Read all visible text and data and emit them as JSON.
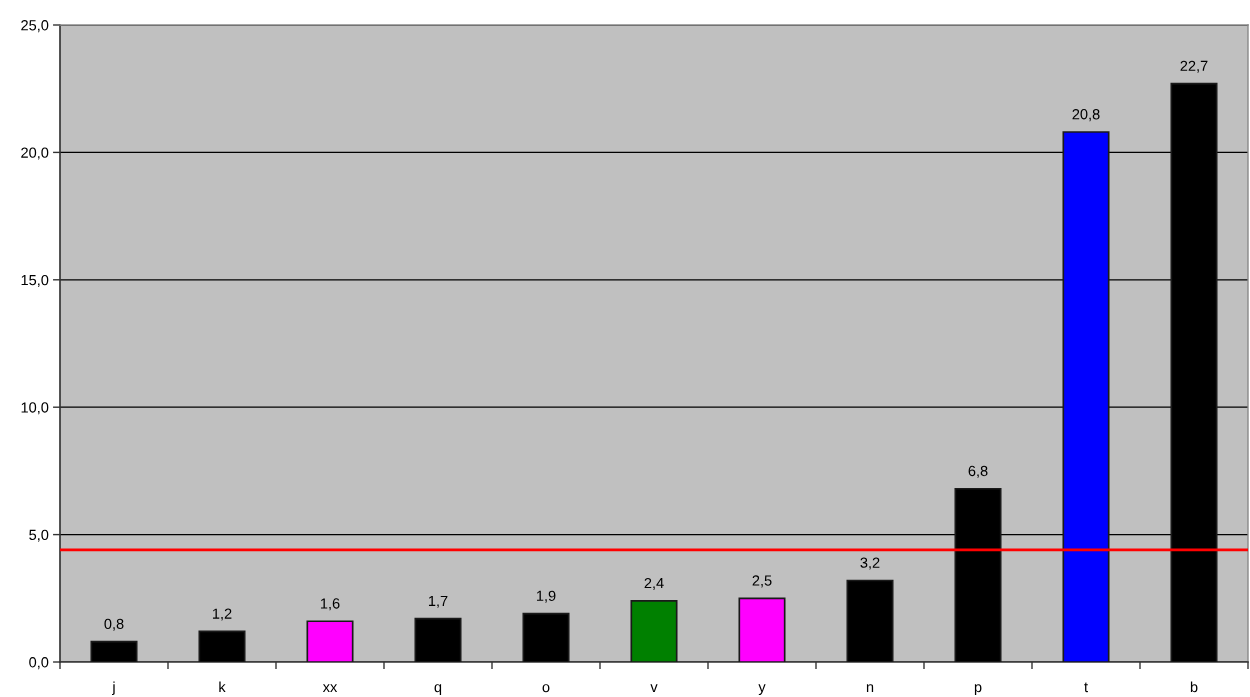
{
  "chart_data": {
    "type": "bar",
    "categories": [
      "j",
      "k",
      "xx",
      "q",
      "o",
      "v",
      "y",
      "n",
      "p",
      "t",
      "b"
    ],
    "values": [
      0.8,
      1.2,
      1.6,
      1.7,
      1.9,
      2.4,
      2.5,
      3.2,
      6.8,
      20.8,
      22.7
    ],
    "colors": [
      "#000000",
      "#000000",
      "#ff00ff",
      "#000000",
      "#000000",
      "#008000",
      "#ff00ff",
      "#000000",
      "#000000",
      "#0000ff",
      "#000000"
    ],
    "value_labels": [
      "0,8",
      "1,2",
      "1,6",
      "1,7",
      "1,9",
      "2,4",
      "2,5",
      "3,2",
      "6,8",
      "20,8",
      "22,7"
    ],
    "ylim": [
      0,
      25
    ],
    "yticks": [
      {
        "value": 0,
        "label": "0,0"
      },
      {
        "value": 5,
        "label": "5,0"
      },
      {
        "value": 10,
        "label": "10,0"
      },
      {
        "value": 15,
        "label": "15,0"
      },
      {
        "value": 20,
        "label": "20,0"
      },
      {
        "value": 25,
        "label": "25,0"
      }
    ],
    "grid": "y",
    "ref_lines": [
      {
        "axis": "y",
        "value": 4.4,
        "color": "#ff0000",
        "line_style": "solid"
      }
    ]
  }
}
